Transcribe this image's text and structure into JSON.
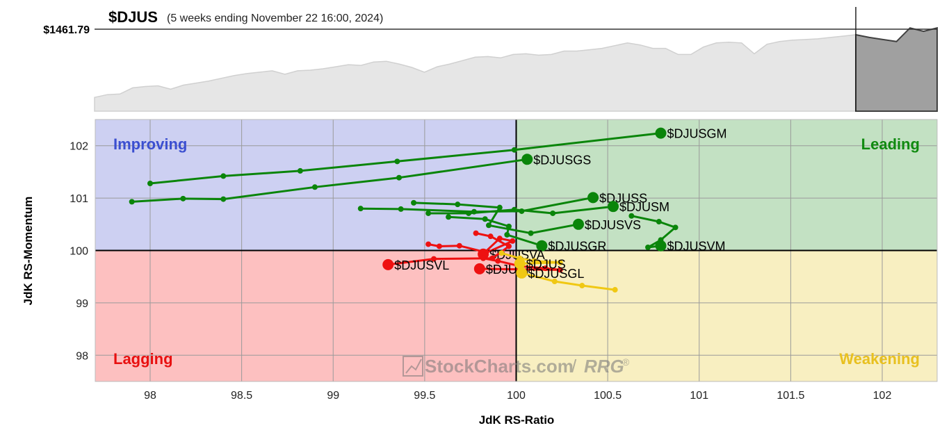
{
  "header": {
    "symbol": "$DJUS",
    "period": "(5 weeks ending November 22 16:00, 2024)",
    "price_label": "$1461.79"
  },
  "watermark": {
    "brand": "StockCharts.com",
    "separator": "/",
    "product": "RRG",
    "mark": "®"
  },
  "colors": {
    "improving_bg": "#cdd0f2",
    "leading_bg": "#c3e1c3",
    "weakening_bg": "#f8efc1",
    "lagging_bg": "#fdc0c0",
    "improving_text": "#3b4fd0",
    "leading_text": "#108a10",
    "weakening_text": "#e8c020",
    "lagging_text": "#e81010",
    "green": "#0a850a",
    "red": "#ee1111",
    "yellow": "#f0c814"
  },
  "chart_data": [
    {
      "type": "area",
      "title": "$DJUS",
      "current_value": 1461.79,
      "values": [
        0.08,
        0.12,
        0.13,
        0.22,
        0.24,
        0.25,
        0.2,
        0.26,
        0.29,
        0.32,
        0.36,
        0.4,
        0.43,
        0.45,
        0.47,
        0.42,
        0.47,
        0.48,
        0.5,
        0.53,
        0.56,
        0.55,
        0.6,
        0.61,
        0.57,
        0.52,
        0.45,
        0.53,
        0.57,
        0.62,
        0.67,
        0.68,
        0.66,
        0.71,
        0.72,
        0.7,
        0.71,
        0.76,
        0.76,
        0.78,
        0.8,
        0.84,
        0.88,
        0.85,
        0.8,
        0.8,
        0.71,
        0.71,
        0.82,
        0.88,
        0.89,
        0.88,
        0.72,
        0.86,
        0.9,
        0.92,
        0.93,
        0.94,
        0.96,
        0.98,
        1.0
      ],
      "highlight_values": [
        1.0,
        0.96,
        0.93,
        0.9,
        1.1,
        1.05,
        1.1
      ],
      "highlight": "last 5 weeks shaded"
    },
    {
      "type": "scatter",
      "xlabel": "JdK RS-Ratio",
      "ylabel": "JdK RS-Momentum",
      "xlim": [
        97.7,
        102.3
      ],
      "ylim": [
        97.5,
        102.5
      ],
      "x_ticks": [
        "98",
        "98.5",
        "99",
        "99.5",
        "100",
        "100.5",
        "101",
        "101.5",
        "102"
      ],
      "y_ticks": [
        "98",
        "99",
        "100",
        "101",
        "102"
      ],
      "quadrants": {
        "improving": "Improving",
        "leading": "Leading",
        "weakening": "Weakening",
        "lagging": "Lagging"
      },
      "series": [
        {
          "name": "$DJUSGM",
          "color": "green",
          "points": [
            [
              98.0,
              101.28
            ],
            [
              98.4,
              101.42
            ],
            [
              98.82,
              101.52
            ],
            [
              99.35,
              101.7
            ],
            [
              99.99,
              101.92
            ],
            [
              100.79,
              102.24
            ]
          ]
        },
        {
          "name": "$DJUSGS",
          "color": "green",
          "points": [
            [
              97.9,
              100.93
            ],
            [
              98.18,
              100.99
            ],
            [
              98.4,
              100.98
            ],
            [
              98.9,
              101.21
            ],
            [
              99.36,
              101.39
            ],
            [
              100.06,
              101.74
            ]
          ]
        },
        {
          "name": "$DJUSS",
          "color": "green",
          "points": [
            [
              99.15,
              100.8
            ],
            [
              99.37,
              100.79
            ],
            [
              99.77,
              100.74
            ],
            [
              100.03,
              100.75
            ],
            [
              100.42,
              101.01
            ]
          ]
        },
        {
          "name": "$DJUSM",
          "color": "green",
          "points": [
            [
              99.52,
              100.71
            ],
            [
              99.74,
              100.71
            ],
            [
              99.99,
              100.78
            ],
            [
              100.2,
              100.71
            ],
            [
              100.53,
              100.84
            ]
          ]
        },
        {
          "name": "$DJUSVS",
          "color": "green",
          "points": [
            [
              99.44,
              100.91
            ],
            [
              99.68,
              100.88
            ],
            [
              99.91,
              100.82
            ],
            [
              99.85,
              100.48
            ],
            [
              100.08,
              100.33
            ],
            [
              100.34,
              100.5
            ]
          ]
        },
        {
          "name": "$DJUSVM",
          "color": "green",
          "points": [
            [
              100.63,
              100.66
            ],
            [
              100.78,
              100.55
            ],
            [
              100.87,
              100.44
            ],
            [
              100.79,
              100.2
            ],
            [
              100.72,
              100.06
            ],
            [
              100.79,
              100.09
            ]
          ]
        },
        {
          "name": "$DJUSGR",
          "color": "green",
          "points": [
            [
              99.63,
              100.64
            ],
            [
              99.83,
              100.6
            ],
            [
              99.96,
              100.46
            ],
            [
              99.95,
              100.3
            ],
            [
              100.14,
              100.09
            ]
          ]
        },
        {
          "name": "$DJUSVA",
          "color": "red",
          "points": [
            [
              99.52,
              100.12
            ],
            [
              99.58,
              100.08
            ],
            [
              99.69,
              100.09
            ],
            [
              99.83,
              99.97
            ],
            [
              99.91,
              100.23
            ],
            [
              99.98,
              100.18
            ],
            [
              99.82,
              99.93
            ]
          ]
        },
        {
          "name": "$DJUSVL",
          "color": "red",
          "points": [
            [
              99.78,
              100.33
            ],
            [
              99.86,
              100.27
            ],
            [
              99.96,
              100.08
            ],
            [
              99.87,
              99.85
            ],
            [
              99.55,
              99.84
            ],
            [
              99.3,
              99.73
            ]
          ]
        },
        {
          "name": "$DJUSI",
          "color": "red",
          "points": [
            [
              99.82,
              99.85
            ],
            [
              99.9,
              99.8
            ],
            [
              100.02,
              99.7
            ],
            [
              100.16,
              99.66
            ],
            [
              100.24,
              99.63
            ],
            [
              99.8,
              99.65
            ]
          ]
        },
        {
          "name": "$DJUS",
          "color": "yellow",
          "points": [
            [
              99.92,
              99.95
            ],
            [
              100.02,
              99.85
            ],
            [
              100.1,
              99.8
            ],
            [
              100.24,
              99.77
            ],
            [
              100.02,
              99.75
            ]
          ]
        },
        {
          "name": "$DJUSGL",
          "color": "yellow",
          "points": [
            [
              100.54,
              99.25
            ],
            [
              100.36,
              99.33
            ],
            [
              100.21,
              99.41
            ],
            [
              100.03,
              99.57
            ]
          ]
        }
      ]
    }
  ]
}
